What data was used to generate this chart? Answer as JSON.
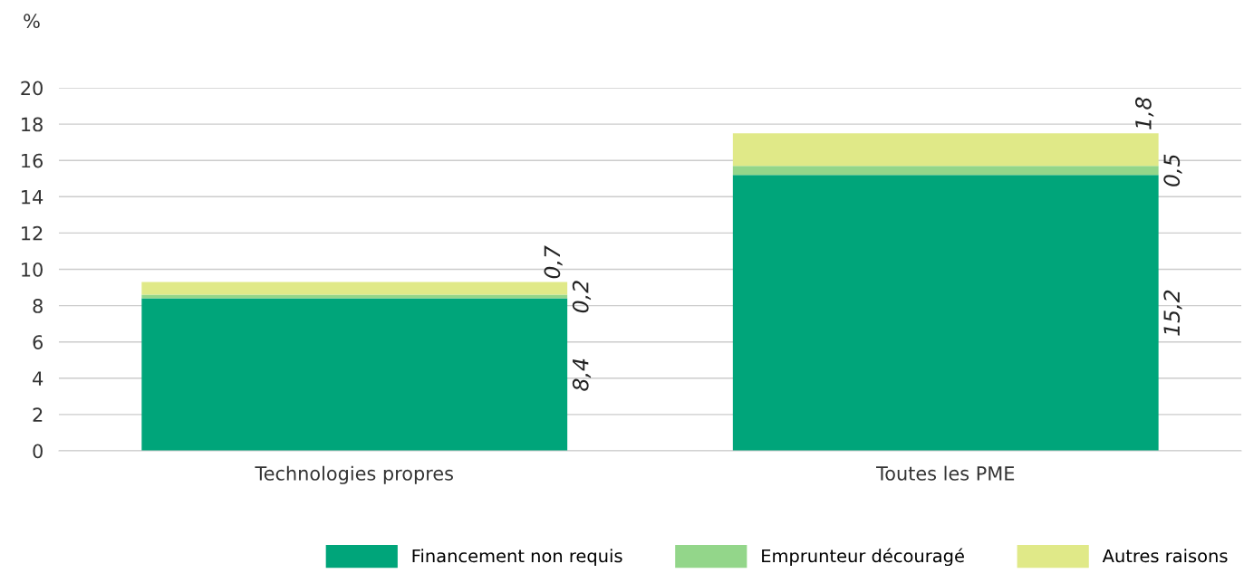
{
  "chart_data": {
    "type": "bar",
    "stacked": true,
    "ylabel": "%",
    "categories": [
      "Technologies propres",
      "Toutes les PME"
    ],
    "series": [
      {
        "name": "Financement non requis",
        "color": "#00a57a",
        "values": [
          8.4,
          15.2
        ],
        "value_labels": [
          "8,4",
          "15,2"
        ]
      },
      {
        "name": "Emprunteur découragé",
        "color": "#93d68a",
        "values": [
          0.2,
          0.5
        ],
        "value_labels": [
          "0,2",
          "0,5"
        ]
      },
      {
        "name": "Autres raisons",
        "color": "#e0e988",
        "values": [
          0.7,
          1.8
        ],
        "value_labels": [
          "0,7",
          "1,8"
        ]
      }
    ],
    "ylim": [
      0,
      20
    ],
    "yticks": [
      0,
      2,
      4,
      6,
      8,
      10,
      12,
      14,
      16,
      18,
      20
    ],
    "grid": "y",
    "legend": "bottom right"
  }
}
